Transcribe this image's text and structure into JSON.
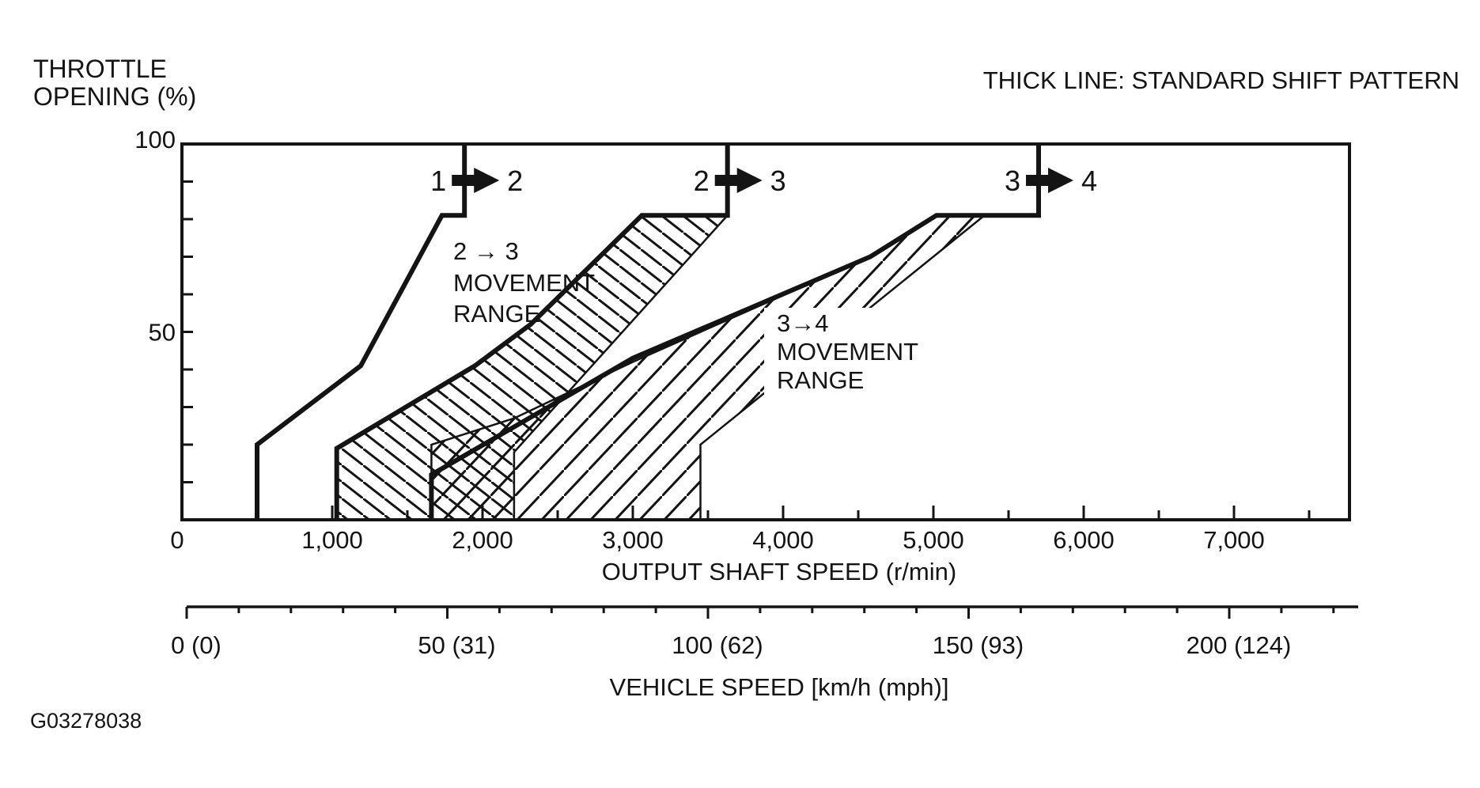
{
  "header": {
    "note": "THICK LINE: STANDARD SHIFT PATTERN"
  },
  "figure_code": "G03278038",
  "y_axis": {
    "title_line1": "THROTTLE",
    "title_line2": "OPENING (%)",
    "min": 0,
    "max": 100,
    "minor_step": 10,
    "tick_labels": [
      {
        "value": 100,
        "label": "100"
      },
      {
        "value": 50,
        "label": "50"
      }
    ]
  },
  "x_axis": {
    "title": "OUTPUT SHAFT SPEED (r/min)",
    "min": 0,
    "max": 7770,
    "minor_step": 500,
    "major_step": 1000,
    "tick_labels": [
      {
        "value": 0,
        "label": "0"
      },
      {
        "value": 1000,
        "label": "1,000"
      },
      {
        "value": 2000,
        "label": "2,000"
      },
      {
        "value": 3000,
        "label": "3,000"
      },
      {
        "value": 4000,
        "label": "4,000"
      },
      {
        "value": 5000,
        "label": "5,000"
      },
      {
        "value": 6000,
        "label": "6,000"
      },
      {
        "value": 7000,
        "label": "7,000"
      }
    ]
  },
  "speed_axis": {
    "title": "VEHICLE SPEED [km/h (mph)]",
    "min": 0,
    "max": 225,
    "minor_step": 10,
    "major_step": 50,
    "tick_labels": [
      {
        "value": 0,
        "label": "0 (0)"
      },
      {
        "value": 50,
        "label": "50 (31)"
      },
      {
        "value": 100,
        "label": "100 (62)"
      },
      {
        "value": 150,
        "label": "150 (93)"
      },
      {
        "value": 200,
        "label": "200 (124)"
      }
    ]
  },
  "chart_data": {
    "type": "line",
    "title": "Automatic transaxle standard shift pattern",
    "xlabel": "OUTPUT SHAFT SPEED (r/min)",
    "x2label": "VEHICLE SPEED [km/h (mph)]",
    "ylabel": "THROTTLE OPENING (%)",
    "xlim": [
      0,
      7770
    ],
    "ylim": [
      0,
      100
    ],
    "legend_note": "THICK LINE: STANDARD SHIFT PATTERN",
    "series": [
      {
        "name": "1-2 standard shift line",
        "gear_from": "1",
        "gear_to": "2",
        "style": "thick",
        "points": [
          [
            500,
            0
          ],
          [
            500,
            20
          ],
          [
            1190,
            41
          ],
          [
            1730,
            81
          ],
          [
            1880,
            81
          ],
          [
            1880,
            100
          ]
        ]
      },
      {
        "name": "2-3 standard shift line",
        "gear_from": "2",
        "gear_to": "3",
        "style": "thick",
        "points": [
          [
            1030,
            0
          ],
          [
            1030,
            19
          ],
          [
            1950,
            41
          ],
          [
            2320,
            52
          ],
          [
            3060,
            81
          ],
          [
            3630,
            81
          ],
          [
            3630,
            100
          ]
        ]
      },
      {
        "name": "3-4 standard shift line",
        "gear_from": "3",
        "gear_to": "4",
        "style": "thick",
        "points": [
          [
            1660,
            0
          ],
          [
            1660,
            12
          ],
          [
            3000,
            43
          ],
          [
            4580,
            70
          ],
          [
            5020,
            81
          ],
          [
            5700,
            81
          ],
          [
            5700,
            100
          ]
        ]
      }
    ],
    "regions": [
      {
        "name": "2-3 movement range",
        "hatch": "backslash",
        "label_lines": [
          "2 → 3",
          "MOVEMENT",
          "RANGE"
        ],
        "polygon": [
          [
            1030,
            0
          ],
          [
            1030,
            19
          ],
          [
            1950,
            41
          ],
          [
            2320,
            52
          ],
          [
            3060,
            81
          ],
          [
            3630,
            81
          ],
          [
            2210,
            18
          ],
          [
            2210,
            0
          ]
        ]
      },
      {
        "name": "3-4 movement range",
        "hatch": "slash",
        "label_lines": [
          "3→4",
          "MOVEMENT",
          "RANGE"
        ],
        "polygon": [
          [
            1660,
            0
          ],
          [
            1660,
            20
          ],
          [
            2210,
            27
          ],
          [
            3000,
            42
          ],
          [
            4580,
            70
          ],
          [
            5020,
            81
          ],
          [
            5340,
            81
          ],
          [
            3450,
            20
          ],
          [
            3450,
            0
          ]
        ]
      }
    ]
  }
}
